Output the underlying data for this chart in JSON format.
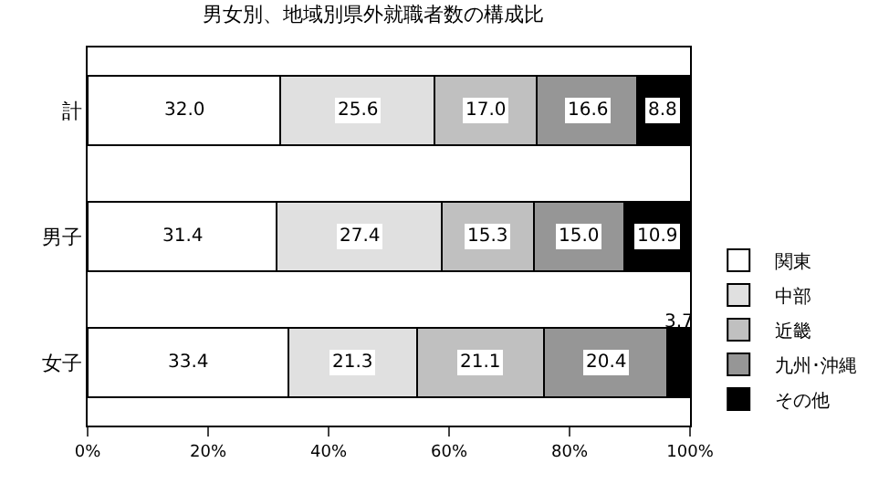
{
  "chart_data": {
    "type": "bar",
    "orientation": "horizontal",
    "stacked": true,
    "title": "男女別、地域別県外就職者数の構成比",
    "categories": [
      "計",
      "男子",
      "女子"
    ],
    "series": [
      {
        "name": "関東",
        "color": "#ffffff",
        "values": [
          32.0,
          31.4,
          33.4
        ],
        "value_labels": [
          "32.0",
          "31.4",
          "33.4"
        ]
      },
      {
        "name": "中部",
        "color": "#e0e0e0",
        "values": [
          25.6,
          27.4,
          21.3
        ],
        "value_labels": [
          "25.6",
          "27.4",
          "21.3"
        ]
      },
      {
        "name": "近畿",
        "color": "#c0c0c0",
        "values": [
          17.0,
          15.3,
          21.1
        ],
        "value_labels": [
          "17.0",
          "15.3",
          "21.1"
        ]
      },
      {
        "name": "九州･沖縄",
        "color": "#969696",
        "values": [
          16.6,
          15.0,
          20.4
        ],
        "value_labels": [
          "16.6",
          "15.0",
          "20.4"
        ]
      },
      {
        "name": "その他",
        "color": "#000000",
        "values": [
          8.8,
          10.9,
          3.7
        ],
        "value_labels": [
          "8.8",
          "10.9",
          "3.7"
        ]
      }
    ],
    "xlim": [
      0,
      100
    ],
    "xticks": [
      {
        "value": 0,
        "label": "0%"
      },
      {
        "value": 20,
        "label": "20%"
      },
      {
        "value": 40,
        "label": "40%"
      },
      {
        "value": 60,
        "label": "60%"
      },
      {
        "value": 80,
        "label": "80%"
      },
      {
        "value": 100,
        "label": "100%"
      }
    ],
    "legend": "right"
  }
}
